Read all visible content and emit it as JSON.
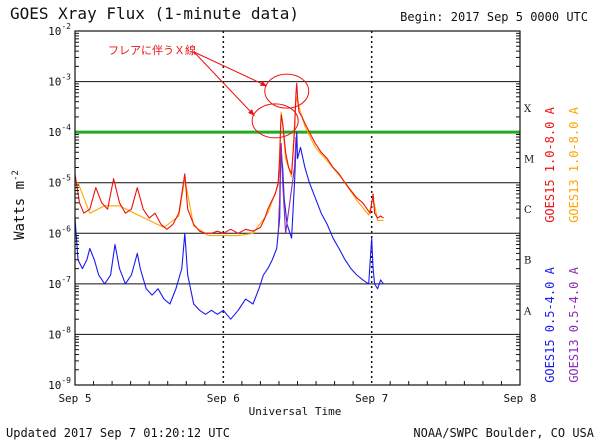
{
  "chart_data": {
    "type": "line",
    "title": "GOES Xray Flux (1-minute data)",
    "begin_label": "Begin:  2017 Sep 5 0000 UTC",
    "ylabel_base": "Watts m",
    "ylabel_exp": "-2",
    "xlabel": "Universal Time",
    "x_ticks": [
      "Sep 5",
      "Sep 6",
      "Sep 7",
      "Sep 8"
    ],
    "x_range_days": [
      5,
      8
    ],
    "y_scale": "log",
    "y_range": [
      1e-09,
      0.01
    ],
    "y_ticks": [
      {
        "base": "10",
        "exp": "-2",
        "value": 0.01
      },
      {
        "base": "10",
        "exp": "-3",
        "value": 0.001
      },
      {
        "base": "10",
        "exp": "-4",
        "value": 0.0001
      },
      {
        "base": "10",
        "exp": "-5",
        "value": 1e-05
      },
      {
        "base": "10",
        "exp": "-6",
        "value": 1e-06
      },
      {
        "base": "10",
        "exp": "-7",
        "value": 1e-07
      },
      {
        "base": "10",
        "exp": "-8",
        "value": 1e-08
      },
      {
        "base": "10",
        "exp": "-9",
        "value": 1e-09
      }
    ],
    "flare_classes": [
      {
        "label": "X",
        "value": 0.0003
      },
      {
        "label": "M",
        "value": 3e-05
      },
      {
        "label": "C",
        "value": 3e-06
      },
      {
        "label": "B",
        "value": 3e-07
      },
      {
        "label": "A",
        "value": 3e-08
      }
    ],
    "threshold": {
      "value": 0.0001,
      "color": "#22aa22"
    },
    "series": [
      {
        "name": "GOES15 1.0-8.0 A",
        "color": "#ee1111",
        "points": [
          [
            5.0,
            1.5e-05
          ],
          [
            5.03,
            4e-06
          ],
          [
            5.06,
            2.5e-06
          ],
          [
            5.1,
            3e-06
          ],
          [
            5.14,
            8e-06
          ],
          [
            5.18,
            4e-06
          ],
          [
            5.22,
            3e-06
          ],
          [
            5.26,
            1.2e-05
          ],
          [
            5.3,
            4e-06
          ],
          [
            5.34,
            2.5e-06
          ],
          [
            5.38,
            3e-06
          ],
          [
            5.42,
            8e-06
          ],
          [
            5.46,
            3e-06
          ],
          [
            5.5,
            2e-06
          ],
          [
            5.54,
            2.5e-06
          ],
          [
            5.58,
            1.5e-06
          ],
          [
            5.62,
            1.2e-06
          ],
          [
            5.66,
            1.5e-06
          ],
          [
            5.7,
            2.5e-06
          ],
          [
            5.72,
            6e-06
          ],
          [
            5.74,
            1.5e-05
          ],
          [
            5.76,
            3e-06
          ],
          [
            5.8,
            1.5e-06
          ],
          [
            5.84,
            1.1e-06
          ],
          [
            5.88,
            1e-06
          ],
          [
            5.92,
            1e-06
          ],
          [
            5.96,
            1.1e-06
          ],
          [
            6.0,
            1e-06
          ],
          [
            6.05,
            1.2e-06
          ],
          [
            6.1,
            1e-06
          ],
          [
            6.15,
            1.2e-06
          ],
          [
            6.2,
            1.1e-06
          ],
          [
            6.25,
            1.3e-06
          ],
          [
            6.28,
            2e-06
          ],
          [
            6.3,
            3e-06
          ],
          [
            6.32,
            4e-06
          ],
          [
            6.35,
            6e-06
          ],
          [
            6.37,
            1e-05
          ],
          [
            6.38,
            3e-05
          ],
          [
            6.385,
            0.0001
          ],
          [
            6.39,
            0.00022
          ],
          [
            6.4,
            0.00015
          ],
          [
            6.41,
            8e-05
          ],
          [
            6.42,
            4e-05
          ],
          [
            6.44,
            2e-05
          ],
          [
            6.46,
            1.5e-05
          ],
          [
            6.48,
            0.0001
          ],
          [
            6.49,
            0.0006
          ],
          [
            6.495,
            0.00093
          ],
          [
            6.5,
            0.0005
          ],
          [
            6.51,
            0.00025
          ],
          [
            6.53,
            0.0002
          ],
          [
            6.55,
            0.00015
          ],
          [
            6.58,
            0.0001
          ],
          [
            6.62,
            6e-05
          ],
          [
            6.66,
            4e-05
          ],
          [
            6.7,
            3e-05
          ],
          [
            6.74,
            2e-05
          ],
          [
            6.78,
            1.5e-05
          ],
          [
            6.82,
            1e-05
          ],
          [
            6.86,
            7e-06
          ],
          [
            6.9,
            5e-06
          ],
          [
            6.94,
            4e-06
          ],
          [
            6.97,
            3e-06
          ],
          [
            6.99,
            2.5e-06
          ],
          [
            7.01,
            6e-06
          ],
          [
            7.02,
            2.5e-06
          ],
          [
            7.04,
            2e-06
          ],
          [
            7.06,
            2.2e-06
          ],
          [
            7.08,
            2e-06
          ]
        ]
      },
      {
        "name": "GOES13 1.0-8.0 A",
        "color": "#ffa500",
        "points": [
          [
            5.02,
            1e-05
          ],
          [
            5.1,
            2.5e-06
          ],
          [
            5.2,
            3.5e-06
          ],
          [
            5.3,
            3.5e-06
          ],
          [
            5.4,
            2.5e-06
          ],
          [
            5.5,
            1.8e-06
          ],
          [
            5.6,
            1.3e-06
          ],
          [
            5.7,
            2.2e-06
          ],
          [
            5.74,
            1.2e-05
          ],
          [
            5.8,
            1.4e-06
          ],
          [
            5.9,
            9e-07
          ],
          [
            6.0,
            9e-07
          ],
          [
            6.1,
            9e-07
          ],
          [
            6.2,
            1e-06
          ],
          [
            6.3,
            2.5e-06
          ],
          [
            6.37,
            9e-06
          ],
          [
            6.385,
            9e-05
          ],
          [
            6.39,
            0.00025
          ],
          [
            6.4,
            0.00014
          ],
          [
            6.42,
            3e-05
          ],
          [
            6.46,
            1.3e-05
          ],
          [
            6.49,
            0.0005
          ],
          [
            6.5,
            0.0004
          ],
          [
            6.55,
            0.00013
          ],
          [
            6.62,
            5e-05
          ],
          [
            6.7,
            2.7e-05
          ],
          [
            6.8,
            1.2e-05
          ],
          [
            6.9,
            4.5e-06
          ],
          [
            6.98,
            2.3e-06
          ],
          [
            7.01,
            5e-06
          ],
          [
            7.04,
            1.8e-06
          ],
          [
            7.08,
            1.8e-06
          ]
        ]
      },
      {
        "name": "GOES15 0.5-4.0 A",
        "color": "#1a1aee",
        "points": [
          [
            5.0,
            2e-06
          ],
          [
            5.02,
            3e-07
          ],
          [
            5.05,
            2e-07
          ],
          [
            5.08,
            3e-07
          ],
          [
            5.1,
            5e-07
          ],
          [
            5.13,
            3e-07
          ],
          [
            5.16,
            1.5e-07
          ],
          [
            5.2,
            1e-07
          ],
          [
            5.24,
            1.5e-07
          ],
          [
            5.27,
            6e-07
          ],
          [
            5.3,
            2e-07
          ],
          [
            5.34,
            1e-07
          ],
          [
            5.38,
            1.5e-07
          ],
          [
            5.42,
            4e-07
          ],
          [
            5.44,
            2e-07
          ],
          [
            5.48,
            8e-08
          ],
          [
            5.52,
            6e-08
          ],
          [
            5.56,
            8e-08
          ],
          [
            5.6,
            5e-08
          ],
          [
            5.64,
            4e-08
          ],
          [
            5.68,
            8e-08
          ],
          [
            5.72,
            2e-07
          ],
          [
            5.74,
            1e-06
          ],
          [
            5.76,
            1.5e-07
          ],
          [
            5.8,
            4e-08
          ],
          [
            5.84,
            3e-08
          ],
          [
            5.88,
            2.5e-08
          ],
          [
            5.92,
            3e-08
          ],
          [
            5.96,
            2.5e-08
          ],
          [
            6.0,
            3e-08
          ],
          [
            6.05,
            2e-08
          ],
          [
            6.1,
            3e-08
          ],
          [
            6.15,
            5e-08
          ],
          [
            6.2,
            4e-08
          ],
          [
            6.24,
            8e-08
          ],
          [
            6.27,
            1.5e-07
          ],
          [
            6.3,
            2e-07
          ],
          [
            6.33,
            3e-07
          ],
          [
            6.36,
            5e-07
          ],
          [
            6.38,
            2e-06
          ],
          [
            6.385,
            1.5e-05
          ],
          [
            6.39,
            4e-05
          ],
          [
            6.4,
            2e-05
          ],
          [
            6.41,
            5e-06
          ],
          [
            6.43,
            1.5e-06
          ],
          [
            6.46,
            8e-07
          ],
          [
            6.48,
            1e-05
          ],
          [
            6.49,
            5e-05
          ],
          [
            6.495,
            0.0001
          ],
          [
            6.5,
            3e-05
          ],
          [
            6.52,
            5e-05
          ],
          [
            6.55,
            2e-05
          ],
          [
            6.58,
            1e-05
          ],
          [
            6.62,
            5e-06
          ],
          [
            6.66,
            2.5e-06
          ],
          [
            6.7,
            1.5e-06
          ],
          [
            6.74,
            8e-07
          ],
          [
            6.78,
            5e-07
          ],
          [
            6.82,
            3e-07
          ],
          [
            6.86,
            2e-07
          ],
          [
            6.9,
            1.5e-07
          ],
          [
            6.94,
            1.2e-07
          ],
          [
            6.98,
            1e-07
          ],
          [
            7.0,
            8e-07
          ],
          [
            7.01,
            2e-07
          ],
          [
            7.02,
            1e-07
          ],
          [
            7.04,
            8e-08
          ],
          [
            7.06,
            1.2e-07
          ],
          [
            7.08,
            1e-07
          ]
        ]
      },
      {
        "name": "GOES13 0.5-4.0 A",
        "color": "#8b2bb5",
        "points": [
          [
            6.37,
            1e-06
          ],
          [
            6.38,
            5e-06
          ],
          [
            6.385,
            3e-05
          ],
          [
            6.39,
            6e-05
          ],
          [
            6.4,
            1e-05
          ],
          [
            6.42,
            1e-06
          ],
          [
            6.48,
            2e-05
          ],
          [
            6.49,
            8e-05
          ]
        ]
      }
    ],
    "annotation": {
      "text": "フレアに伴うＸ線",
      "color": "#ee1111",
      "targets": [
        [
          6.495,
          0.00093
        ],
        [
          6.39,
          0.00022
        ]
      ]
    },
    "legend_placement": "right, vertical"
  },
  "footer": {
    "updated": "Updated 2017 Sep  7 01:20:12 UTC",
    "source": "NOAA/SWPC Boulder, CO USA"
  }
}
